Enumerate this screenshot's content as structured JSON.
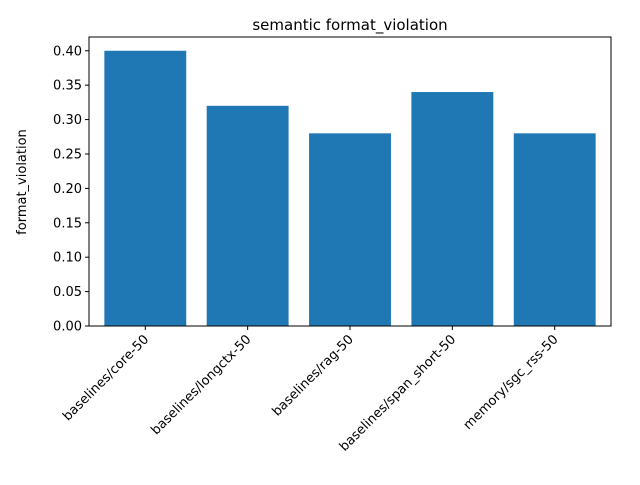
{
  "chart_data": {
    "type": "bar",
    "title": "semantic format_violation",
    "xlabel": "",
    "ylabel": "format_violation",
    "categories": [
      "baselines/core-50",
      "baselines/longctx-50",
      "baselines/rag-50",
      "baselines/span_short-50",
      "memory/sgc_rss-50"
    ],
    "values": [
      0.4,
      0.32,
      0.28,
      0.34,
      0.28
    ],
    "ylim": [
      0,
      0.42
    ],
    "yticks": [
      "0.00",
      "0.05",
      "0.10",
      "0.15",
      "0.20",
      "0.25",
      "0.30",
      "0.35",
      "0.40"
    ],
    "grid": false,
    "bar_color": "#1f77b4"
  }
}
